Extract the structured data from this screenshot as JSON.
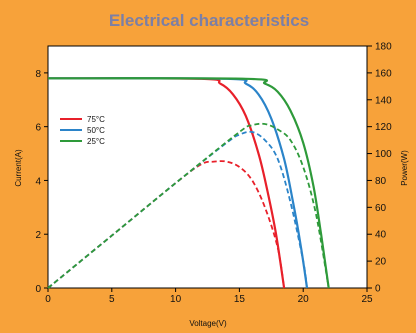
{
  "chart_data": {
    "type": "line",
    "title": "Electrical characteristics",
    "xlabel": "Voltage(V)",
    "ylabel": "Current(A)",
    "y2label": "Power(W)",
    "xlim": [
      0,
      25
    ],
    "ylim": [
      0,
      9
    ],
    "y2lim": [
      0,
      180
    ],
    "xticks": [
      0,
      5,
      10,
      15,
      20,
      25
    ],
    "yticks": [
      0,
      2,
      4,
      6,
      8
    ],
    "y2ticks": [
      0,
      20,
      40,
      60,
      80,
      100,
      120,
      140,
      160,
      180
    ],
    "legend_position": "left",
    "series": [
      {
        "name": "75°C",
        "color": "#e8202a",
        "iv_curve": [
          [
            0,
            7.8
          ],
          [
            12,
            7.78
          ],
          [
            13.5,
            7.6
          ],
          [
            14.5,
            7.2
          ],
          [
            15.5,
            6.4
          ],
          [
            16.5,
            5.0
          ],
          [
            17.2,
            3.6
          ],
          [
            17.8,
            2.2
          ],
          [
            18.2,
            1.0
          ],
          [
            18.5,
            0
          ]
        ],
        "power_curve": [
          [
            0,
            0
          ],
          [
            5,
            39
          ],
          [
            10,
            78
          ],
          [
            12,
            92
          ],
          [
            13,
            94
          ],
          [
            14,
            94
          ],
          [
            15,
            90
          ],
          [
            16,
            80
          ],
          [
            17,
            60
          ],
          [
            18,
            30
          ],
          [
            18.5,
            0
          ]
        ]
      },
      {
        "name": "50°C",
        "color": "#2b84c9",
        "iv_curve": [
          [
            0,
            7.8
          ],
          [
            14,
            7.78
          ],
          [
            15.5,
            7.6
          ],
          [
            16.5,
            7.2
          ],
          [
            17.5,
            6.3
          ],
          [
            18.5,
            4.8
          ],
          [
            19.2,
            3.2
          ],
          [
            19.8,
            1.6
          ],
          [
            20.3,
            0
          ]
        ],
        "power_curve": [
          [
            0,
            0
          ],
          [
            5,
            39
          ],
          [
            10,
            78
          ],
          [
            14,
            108
          ],
          [
            15,
            114
          ],
          [
            16,
            116
          ],
          [
            17,
            110
          ],
          [
            18,
            96
          ],
          [
            19,
            64
          ],
          [
            20,
            20
          ],
          [
            20.3,
            0
          ]
        ]
      },
      {
        "name": "25°C",
        "color": "#2e9a3a",
        "iv_curve": [
          [
            0,
            7.8
          ],
          [
            15.5,
            7.78
          ],
          [
            17,
            7.6
          ],
          [
            18,
            7.3
          ],
          [
            19,
            6.6
          ],
          [
            20,
            5.4
          ],
          [
            20.8,
            3.8
          ],
          [
            21.4,
            2.0
          ],
          [
            22,
            0
          ]
        ],
        "power_curve": [
          [
            0,
            0
          ],
          [
            5,
            39
          ],
          [
            10,
            78
          ],
          [
            15,
            116
          ],
          [
            16,
            121
          ],
          [
            17,
            122
          ],
          [
            18,
            118
          ],
          [
            19,
            110
          ],
          [
            20,
            90
          ],
          [
            21,
            55
          ],
          [
            22,
            0
          ]
        ]
      }
    ]
  }
}
